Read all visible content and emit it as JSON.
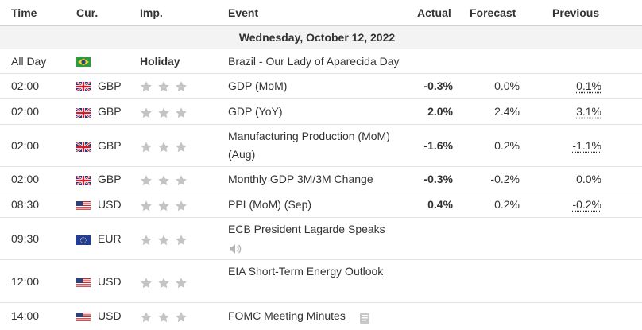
{
  "columns": {
    "time": "Time",
    "currency": "Cur.",
    "importance": "Imp.",
    "event": "Event",
    "actual": "Actual",
    "forecast": "Forecast",
    "previous": "Previous"
  },
  "date_header": "Wednesday, October 12, 2022",
  "colors": {
    "negative": "#e30000",
    "positive": "#1f9b1f",
    "star": "#c8c8c8"
  },
  "rows": [
    {
      "time": "All Day",
      "flag": "brazil-flag-icon",
      "currency": "",
      "importance": "Holiday",
      "event": "Brazil - Our Lady of Aparecida Day",
      "actual": "",
      "forecast": "",
      "previous": ""
    },
    {
      "time": "02:00",
      "flag": "uk-flag-icon",
      "currency": "GBP",
      "importance": "3 stars",
      "event": "GDP (MoM)",
      "actual": "-0.3%",
      "forecast": "0.0%",
      "previous": "0.1%"
    },
    {
      "time": "02:00",
      "flag": "uk-flag-icon",
      "currency": "GBP",
      "importance": "3 stars",
      "event": "GDP (YoY)",
      "actual": "2.0%",
      "forecast": "2.4%",
      "previous": "3.1%"
    },
    {
      "time": "02:00",
      "flag": "uk-flag-icon",
      "currency": "GBP",
      "importance": "3 stars",
      "event_line1": "Manufacturing Production (MoM)",
      "event_line2": "(Aug)",
      "actual": "-1.6%",
      "forecast": "0.2%",
      "previous": "-1.1%"
    },
    {
      "time": "02:00",
      "flag": "uk-flag-icon",
      "currency": "GBP",
      "importance": "3 stars",
      "event": "Monthly GDP 3M/3M Change",
      "actual": "-0.3%",
      "forecast": "-0.2%",
      "previous": "0.0%"
    },
    {
      "time": "08:30",
      "flag": "us-flag-icon",
      "currency": "USD",
      "importance": "3 stars",
      "event": "PPI (MoM) (Sep)",
      "actual": "0.4%",
      "forecast": "0.2%",
      "previous": "-0.2%"
    },
    {
      "time": "09:30",
      "flag": "eu-flag-icon",
      "currency": "EUR",
      "importance": "3 stars",
      "event": "ECB President Lagarde Speaks",
      "actual": "",
      "forecast": "",
      "previous": "",
      "icon": "speaker-icon"
    },
    {
      "time": "12:00",
      "flag": "us-flag-icon",
      "currency": "USD",
      "importance": "3 stars",
      "event": "EIA Short-Term Energy Outlook",
      "actual": "",
      "forecast": "",
      "previous": ""
    },
    {
      "time": "14:00",
      "flag": "us-flag-icon",
      "currency": "USD",
      "importance": "3 stars",
      "event": "FOMC Meeting Minutes",
      "actual": "",
      "forecast": "",
      "previous": "",
      "icon": "document-icon"
    }
  ]
}
